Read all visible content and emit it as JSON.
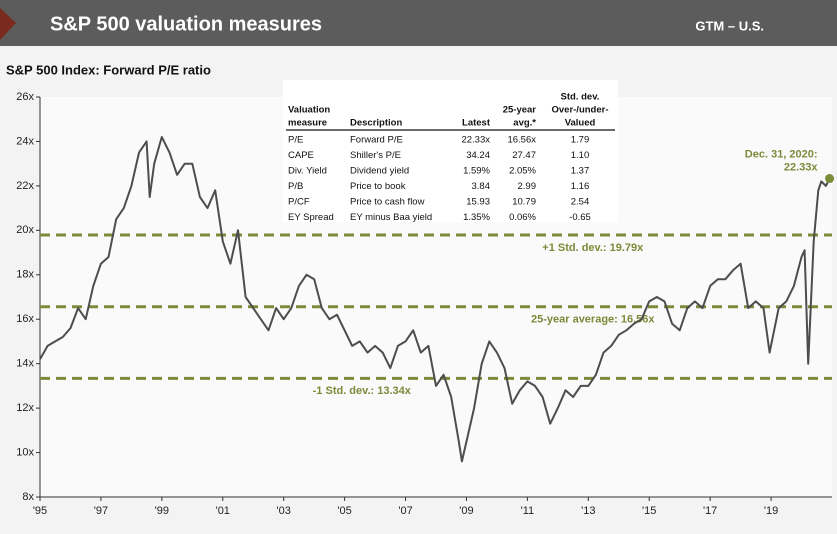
{
  "header": {
    "title": "S&P 500 valuation measures",
    "tag": "GTM – U.S."
  },
  "chart_data": {
    "type": "line",
    "title": "S&P 500 Index: Forward P/E ratio",
    "x": [
      1995.0,
      1995.25,
      1995.5,
      1995.75,
      1996.0,
      1996.25,
      1996.5,
      1996.75,
      1997.0,
      1997.25,
      1997.5,
      1997.75,
      1998.0,
      1998.25,
      1998.5,
      1998.6,
      1998.75,
      1999.0,
      1999.25,
      1999.5,
      1999.75,
      2000.0,
      2000.25,
      2000.5,
      2000.75,
      2001.0,
      2001.25,
      2001.5,
      2001.75,
      2002.0,
      2002.25,
      2002.5,
      2002.75,
      2003.0,
      2003.25,
      2003.5,
      2003.75,
      2004.0,
      2004.25,
      2004.5,
      2004.75,
      2005.0,
      2005.25,
      2005.5,
      2005.75,
      2006.0,
      2006.25,
      2006.5,
      2006.75,
      2007.0,
      2007.25,
      2007.5,
      2007.75,
      2008.0,
      2008.25,
      2008.5,
      2008.75,
      2008.85,
      2009.0,
      2009.25,
      2009.5,
      2009.75,
      2010.0,
      2010.25,
      2010.5,
      2010.75,
      2011.0,
      2011.25,
      2011.5,
      2011.75,
      2012.0,
      2012.25,
      2012.5,
      2012.75,
      2013.0,
      2013.25,
      2013.5,
      2013.75,
      2014.0,
      2014.25,
      2014.5,
      2014.75,
      2015.0,
      2015.25,
      2015.5,
      2015.75,
      2016.0,
      2016.25,
      2016.5,
      2016.75,
      2017.0,
      2017.25,
      2017.5,
      2017.75,
      2018.0,
      2018.25,
      2018.5,
      2018.75,
      2018.95,
      2019.25,
      2019.5,
      2019.75,
      2020.0,
      2020.1,
      2020.22,
      2020.4,
      2020.55,
      2020.65,
      2020.8,
      2020.92
    ],
    "values": [
      14.2,
      14.8,
      15.0,
      15.2,
      15.6,
      16.5,
      16.0,
      17.5,
      18.5,
      18.8,
      20.5,
      21.0,
      22.0,
      23.5,
      24.0,
      21.5,
      23.0,
      24.2,
      23.5,
      22.5,
      23.0,
      23.0,
      21.5,
      21.0,
      21.8,
      19.5,
      18.5,
      20.0,
      17.0,
      16.5,
      16.0,
      15.5,
      16.5,
      16.0,
      16.5,
      17.5,
      18.0,
      17.8,
      16.5,
      16.0,
      16.2,
      15.5,
      14.8,
      15.0,
      14.5,
      14.8,
      14.5,
      13.8,
      14.8,
      15.0,
      15.5,
      14.5,
      14.8,
      13.0,
      13.5,
      12.5,
      10.5,
      9.6,
      10.5,
      12.0,
      14.0,
      15.0,
      14.5,
      13.8,
      12.2,
      12.8,
      13.2,
      13.0,
      12.5,
      11.3,
      12.0,
      12.8,
      12.5,
      13.0,
      13.0,
      13.5,
      14.5,
      14.8,
      15.3,
      15.5,
      15.8,
      16.0,
      16.8,
      17.0,
      16.8,
      15.8,
      15.5,
      16.5,
      16.8,
      16.5,
      17.5,
      17.8,
      17.8,
      18.2,
      18.5,
      16.5,
      16.8,
      16.5,
      14.5,
      16.5,
      16.8,
      17.5,
      18.8,
      19.1,
      14.0,
      19.5,
      21.8,
      22.2,
      22.0,
      22.33
    ],
    "color": "#4d4d4d",
    "xlim": [
      1995,
      2021
    ],
    "xticks": [
      {
        "value": 1995,
        "label": "'95"
      },
      {
        "value": 1997,
        "label": "'97"
      },
      {
        "value": 1999,
        "label": "'99"
      },
      {
        "value": 2001,
        "label": "'01"
      },
      {
        "value": 2003,
        "label": "'03"
      },
      {
        "value": 2005,
        "label": "'05"
      },
      {
        "value": 2007,
        "label": "'07"
      },
      {
        "value": 2009,
        "label": "'09"
      },
      {
        "value": 2011,
        "label": "'11"
      },
      {
        "value": 2013,
        "label": "'13"
      },
      {
        "value": 2015,
        "label": "'15"
      },
      {
        "value": 2017,
        "label": "'17"
      },
      {
        "value": 2019,
        "label": "'19"
      }
    ],
    "ylim": [
      8,
      26
    ],
    "yticks": [
      {
        "value": 8,
        "label": "8x"
      },
      {
        "value": 10,
        "label": "10x"
      },
      {
        "value": 12,
        "label": "12x"
      },
      {
        "value": 14,
        "label": "14x"
      },
      {
        "value": 16,
        "label": "16x"
      },
      {
        "value": 18,
        "label": "18x"
      },
      {
        "value": 20,
        "label": "20x"
      },
      {
        "value": 22,
        "label": "22x"
      },
      {
        "value": 24,
        "label": "24x"
      },
      {
        "value": 26,
        "label": "26x"
      }
    ],
    "reference_lines": [
      {
        "value": 19.79,
        "label": "+1 Std. dev.: 19.79x",
        "color": "#7a8b3a"
      },
      {
        "value": 16.56,
        "label": "25-year average: 16.56x",
        "color": "#7a8b3a"
      },
      {
        "value": 13.34,
        "label": "-1 Std. dev.: 13.34x",
        "color": "#7a8b3a"
      }
    ],
    "annotation": [
      "Dec. 31, 2020:",
      "22.33x"
    ]
  },
  "table": {
    "columns": [
      [
        "Valuation",
        "measure"
      ],
      [
        "Description"
      ],
      [
        "Latest"
      ],
      [
        "25-year",
        "avg.*"
      ],
      [
        "Std. dev.",
        "Over-/under-",
        "Valued"
      ]
    ],
    "rows": [
      [
        "P/E",
        "Forward P/E",
        "22.33x",
        "16.56x",
        "1.79"
      ],
      [
        "CAPE",
        "Shiller's P/E",
        "34.24",
        "27.47",
        "1.10"
      ],
      [
        "Div. Yield",
        "Dividend yield",
        "1.59%",
        "2.05%",
        "1.37"
      ],
      [
        "P/B",
        "Price to book",
        "3.84",
        "2.99",
        "1.16"
      ],
      [
        "P/CF",
        "Price to cash flow",
        "15.93",
        "10.79",
        "2.54"
      ],
      [
        "EY Spread",
        "EY minus Baa yield",
        "1.35%",
        "0.06%",
        "-0.65"
      ]
    ]
  }
}
